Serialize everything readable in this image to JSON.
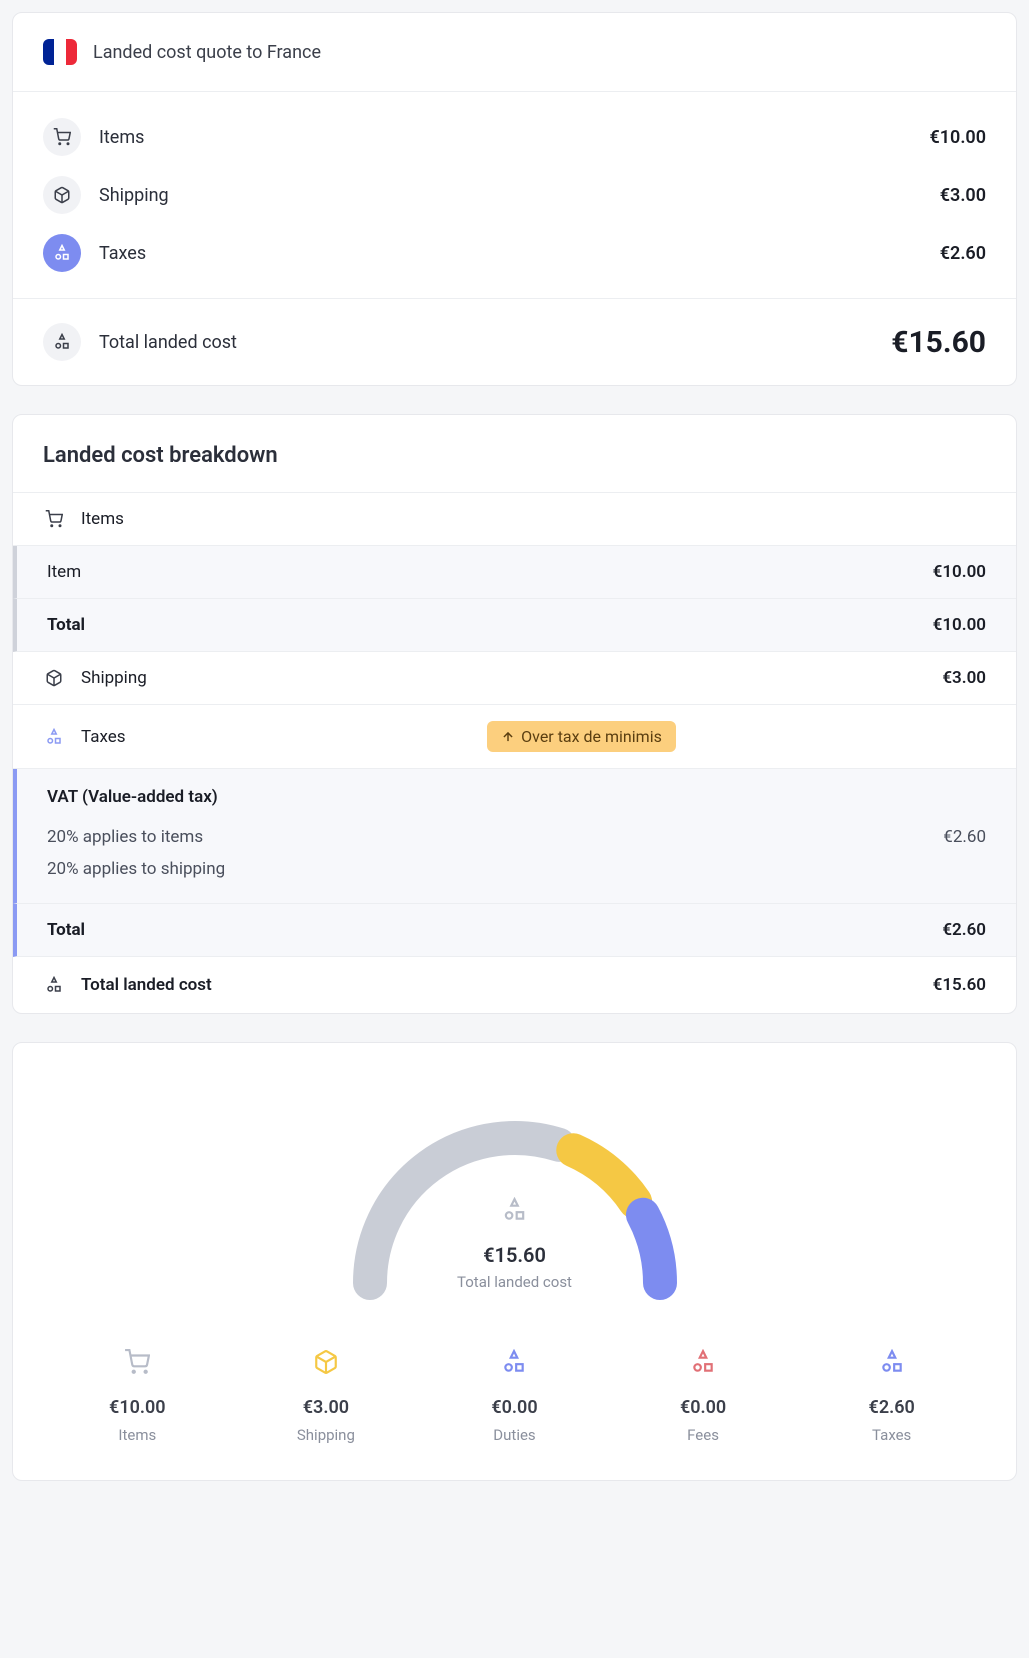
{
  "quote": {
    "title": "Landed cost quote to France",
    "country_flag_colors": [
      "#002395",
      "#ffffff",
      "#ED2939"
    ],
    "lines": {
      "items": {
        "label": "Items",
        "value": "€10.00"
      },
      "shipping": {
        "label": "Shipping",
        "value": "€3.00"
      },
      "taxes": {
        "label": "Taxes",
        "value": "€2.60"
      }
    },
    "total": {
      "label": "Total landed cost",
      "value": "€15.60"
    }
  },
  "breakdown": {
    "title": "Landed cost breakdown",
    "items_section": {
      "header": "Items",
      "item_row": {
        "label": "Item",
        "value": "€10.00"
      },
      "total_row": {
        "label": "Total",
        "value": "€10.00"
      }
    },
    "shipping_row": {
      "label": "Shipping",
      "value": "€3.00"
    },
    "taxes_section": {
      "header": "Taxes",
      "badge": "Over tax de minimis",
      "vat_title": "VAT (Value-added tax)",
      "vat_lines": [
        {
          "label": "20% applies to items",
          "value": "€2.60"
        },
        {
          "label": "20% applies to shipping",
          "value": ""
        }
      ],
      "total_row": {
        "label": "Total",
        "value": "€2.60"
      }
    },
    "grand_total": {
      "label": "Total landed cost",
      "value": "€15.60"
    }
  },
  "gauge": {
    "center": {
      "amount": "€15.60",
      "label": "Total landed cost"
    },
    "arc": {
      "background_color": "#ffffff",
      "stroke_width": 34,
      "segments": [
        {
          "name": "items",
          "fraction": 0.641,
          "color": "#c9cdd6"
        },
        {
          "name": "shipping",
          "fraction": 0.192,
          "color": "#f5c844"
        },
        {
          "name": "duties",
          "fraction": 0.0,
          "color": "#c9cdd6"
        },
        {
          "name": "fees",
          "fraction": 0.0,
          "color": "#c9cdd6"
        },
        {
          "name": "taxes",
          "fraction": 0.167,
          "color": "#7d8cf0"
        }
      ],
      "gap_deg": 6
    },
    "legend": [
      {
        "key": "items",
        "amount": "€10.00",
        "label": "Items",
        "icon_color": "#b7bcc8"
      },
      {
        "key": "shipping",
        "amount": "€3.00",
        "label": "Shipping",
        "icon_color": "#f5c844"
      },
      {
        "key": "duties",
        "amount": "€0.00",
        "label": "Duties",
        "icon_color": "#7d8cf0"
      },
      {
        "key": "fees",
        "amount": "€0.00",
        "label": "Fees",
        "icon_color": "#e17076"
      },
      {
        "key": "taxes",
        "amount": "€2.60",
        "label": "Taxes",
        "icon_color": "#7d8cf0"
      }
    ]
  },
  "colors": {
    "card_border": "#e7e8ec",
    "text_primary": "#1a1d26",
    "text_secondary": "#8a8f9c",
    "accent": "#7d8cf0",
    "badge_bg": "#fccf7e",
    "badge_text": "#5a3e10"
  }
}
